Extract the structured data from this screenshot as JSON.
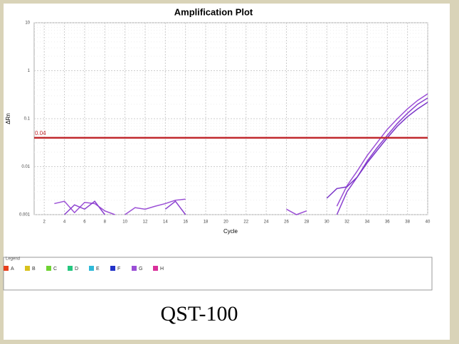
{
  "chart_data": {
    "type": "line",
    "title": "Amplification Plot",
    "x_label": "Cycle",
    "y_label": "ΔRn",
    "log_y": true,
    "grid": true,
    "xlim": [
      1,
      40
    ],
    "xticks": [
      2,
      4,
      6,
      8,
      10,
      12,
      14,
      16,
      18,
      20,
      22,
      24,
      26,
      28,
      30,
      32,
      34,
      36,
      38,
      40
    ],
    "ylim": [
      0.001,
      10
    ],
    "yticks": [
      0.001,
      0.01,
      0.1,
      1,
      10
    ],
    "threshold": {
      "value": 0.04,
      "label": "0.04",
      "color": "#c0282d"
    },
    "series": [
      {
        "color": "#9b4fd6",
        "x": [
          31,
          32,
          33,
          34,
          35,
          36,
          37,
          38,
          39,
          40
        ],
        "values": [
          0.0015,
          0.004,
          0.008,
          0.017,
          0.032,
          0.06,
          0.1,
          0.16,
          0.24,
          0.33
        ]
      },
      {
        "color": "#8a3fcf",
        "x": [
          31,
          32,
          33,
          34,
          35,
          36,
          37,
          38,
          39,
          40
        ],
        "values": [
          0.001,
          0.003,
          0.006,
          0.013,
          0.025,
          0.045,
          0.08,
          0.13,
          0.2,
          0.27
        ]
      },
      {
        "color": "#7a35c8",
        "x": [
          30,
          31,
          32,
          33,
          34,
          35,
          36,
          37,
          38,
          39,
          40
        ],
        "values": [
          0.0022,
          0.0035,
          0.0038,
          0.006,
          0.012,
          0.022,
          0.04,
          0.07,
          0.11,
          0.16,
          0.22
        ]
      },
      {
        "color": "#9b4fd6",
        "x": [
          3,
          4,
          5,
          6,
          7,
          8,
          9
        ],
        "values": [
          0.0017,
          0.0019,
          0.0011,
          0.0018,
          0.0017,
          0.0012,
          0.001
        ]
      },
      {
        "color": "#8a3fcf",
        "x": [
          4,
          5,
          6,
          7,
          8
        ],
        "values": [
          0.001,
          0.0016,
          0.0013,
          0.0019,
          0.001
        ]
      },
      {
        "color": "#9b4fd6",
        "x": [
          10,
          11,
          12,
          13,
          14,
          15,
          16
        ],
        "values": [
          0.001,
          0.0014,
          0.0013,
          0.0015,
          0.0017,
          0.002,
          0.0021
        ]
      },
      {
        "color": "#8a3fcf",
        "x": [
          14,
          15,
          16
        ],
        "values": [
          0.0013,
          0.0019,
          0.001
        ]
      },
      {
        "color": "#9b4fd6",
        "x": [
          26,
          27,
          28
        ],
        "values": [
          0.0013,
          0.001,
          0.0012
        ]
      }
    ],
    "legend": {
      "title": "Legend",
      "items": [
        {
          "label": "A",
          "color": "#e8401c"
        },
        {
          "label": "B",
          "color": "#d8c21d"
        },
        {
          "label": "C",
          "color": "#6fd332"
        },
        {
          "label": "D",
          "color": "#25c77f"
        },
        {
          "label": "E",
          "color": "#2fb9d8"
        },
        {
          "label": "F",
          "color": "#2233c8"
        },
        {
          "label": "G",
          "color": "#9b4fd6"
        },
        {
          "label": "H",
          "color": "#d9309b"
        }
      ]
    },
    "caption": "QST-100"
  }
}
